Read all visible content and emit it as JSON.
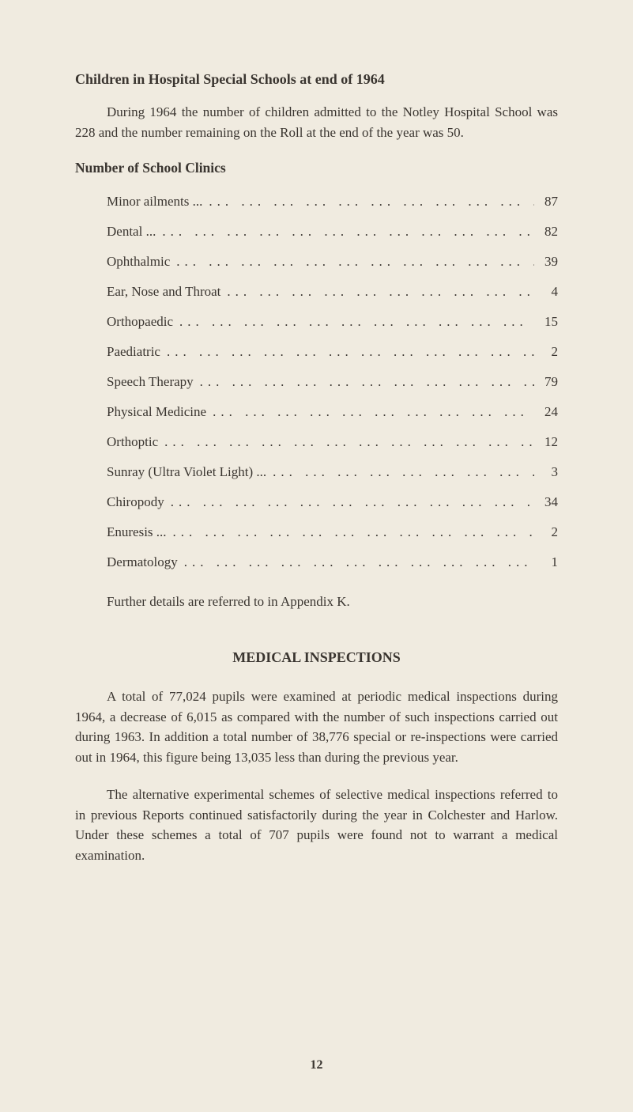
{
  "heading1": "Children in Hospital Special Schools at end of 1964",
  "para1": "During 1964 the number of children admitted to the Notley Hospital School was 228 and the number remaining on the Roll at the end of the year was 50.",
  "subheading": "Number of School Clinics",
  "clinics": [
    {
      "label": "Minor ailments ...",
      "value": "87"
    },
    {
      "label": "Dental   ...",
      "value": "82"
    },
    {
      "label": "Ophthalmic",
      "value": "39"
    },
    {
      "label": "Ear,  Nose  and  Throat",
      "value": "4"
    },
    {
      "label": "Orthopaedic",
      "value": "15"
    },
    {
      "label": "Paediatric",
      "value": "2"
    },
    {
      "label": "Speech Therapy",
      "value": "79"
    },
    {
      "label": "Physical Medicine",
      "value": "24"
    },
    {
      "label": "Orthoptic",
      "value": "12"
    },
    {
      "label": "Sunray  (Ultra  Violet Light)  ...",
      "value": "3"
    },
    {
      "label": "Chiropody",
      "value": "34"
    },
    {
      "label": "Enuresis ...",
      "value": "2"
    },
    {
      "label": "Dermatology",
      "value": "1"
    }
  ],
  "further": "Further details are referred to in Appendix K.",
  "section_title": "MEDICAL INSPECTIONS",
  "para2": "A total of 77,024 pupils were examined at periodic medical inspections during 1964, a decrease of 6,015 as compared with the number of such inspections carried out during 1963. In addition a total number of 38,776 special or re-inspections were carried out in 1964, this figure being 13,035 less than during the previous year.",
  "para3": "The alternative experimental schemes of selective medical inspections referred to in previous Reports continued satisfactorily during the year in Colchester and Harlow. Under these schemes a total of 707 pupils were found not to warrant a medical examination.",
  "page_number": "12",
  "colors": {
    "background": "#f0ebe0",
    "text": "#3a3530"
  },
  "fonts": {
    "body_family": "Georgia, Times New Roman, serif",
    "heading_size": 18,
    "body_size": 17
  }
}
